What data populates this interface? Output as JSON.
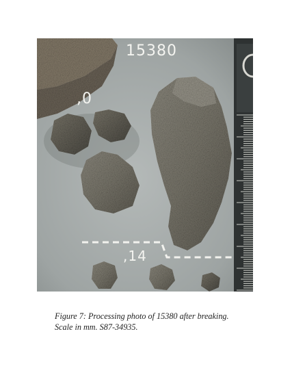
{
  "photo": {
    "sample_number": "15380",
    "split_label_top": ",0",
    "split_label_bottom": ",14"
  },
  "caption": {
    "line1": "Figure 7:  Processing photo of 15380 after breaking.",
    "line2": "Scale in mm.  S87-34935."
  }
}
